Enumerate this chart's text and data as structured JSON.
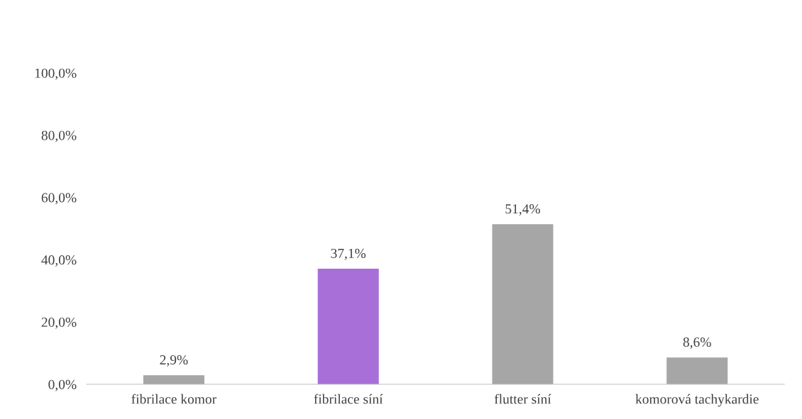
{
  "chart_data": {
    "type": "bar",
    "categories": [
      "fibrilace komor",
      "fibrilace síní",
      "flutter síní",
      "komorová tachykardie"
    ],
    "values": [
      2.9,
      37.1,
      51.4,
      8.6
    ],
    "colors": [
      "#a6a6a6",
      "#a86fd9",
      "#a6a6a6",
      "#a6a6a6"
    ],
    "value_labels": [
      "2,9%",
      "37,1%",
      "51,4%",
      "8,6%"
    ],
    "ylim": [
      0,
      100
    ],
    "yticks": [
      {
        "value": 0,
        "label": "0,0%"
      },
      {
        "value": 20,
        "label": "20,0%"
      },
      {
        "value": 40,
        "label": "40,0%"
      },
      {
        "value": 60,
        "label": "60,0%"
      },
      {
        "value": 80,
        "label": "80,0%"
      },
      {
        "value": 100,
        "label": "100,0%"
      }
    ],
    "grid": false,
    "legend": false
  }
}
